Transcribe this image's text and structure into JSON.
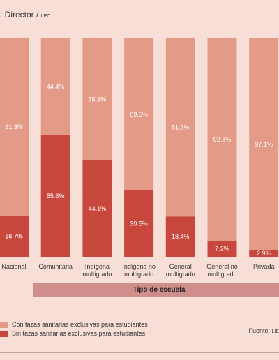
{
  "header": {
    "label_prefix": ": Director / ",
    "label_suffix": "LEC"
  },
  "chart_data": {
    "type": "bar",
    "stacked": true,
    "percent": true,
    "categories": [
      "Nacional",
      "Comunitaria",
      "Indígena multigrado",
      "Indígena no multigrado",
      "General multigrado",
      "General no multigrado",
      "Privada"
    ],
    "category_lines": [
      [
        "Nacional"
      ],
      [
        "Comunitaria"
      ],
      [
        "Indígena",
        "multigrado"
      ],
      [
        "Indígena no",
        "multigrado"
      ],
      [
        "General",
        "multigrado"
      ],
      [
        "General no",
        "multigrado"
      ],
      [
        "Privada"
      ]
    ],
    "series": [
      {
        "name": "Sin tazas sanitarias exclusivas para estudiantes",
        "color": "#c8473d",
        "values": [
          18.7,
          55.6,
          44.1,
          30.5,
          18.4,
          7.2,
          2.9
        ],
        "labels": [
          "18.7%",
          "55.6%",
          "44.1%",
          "30.5%",
          "18.4%",
          "7.2%",
          "2.9%"
        ]
      },
      {
        "name": "Con tazas sanitarias exclusivas para estudiantes",
        "color": "#e39a87",
        "values": [
          81.3,
          44.4,
          55.9,
          69.5,
          81.6,
          92.8,
          97.1
        ],
        "labels": [
          "81.3%",
          "44.4%",
          "55.9%",
          "69.5%",
          "81.6%",
          "92.8%",
          "97.1%"
        ]
      }
    ],
    "xlabel": "Tipo de escuela",
    "ylim": [
      0,
      100
    ]
  },
  "legend": [
    {
      "label": "Con tazas sanitarias exclusivas para estudiantes",
      "color": "#e39a87"
    },
    {
      "label": "Sin tazas sanitarias exclusivas para estudiantes",
      "color": "#c8473d"
    }
  ],
  "source": {
    "prefix": "Fuente: ",
    "suffix": "LIE"
  }
}
